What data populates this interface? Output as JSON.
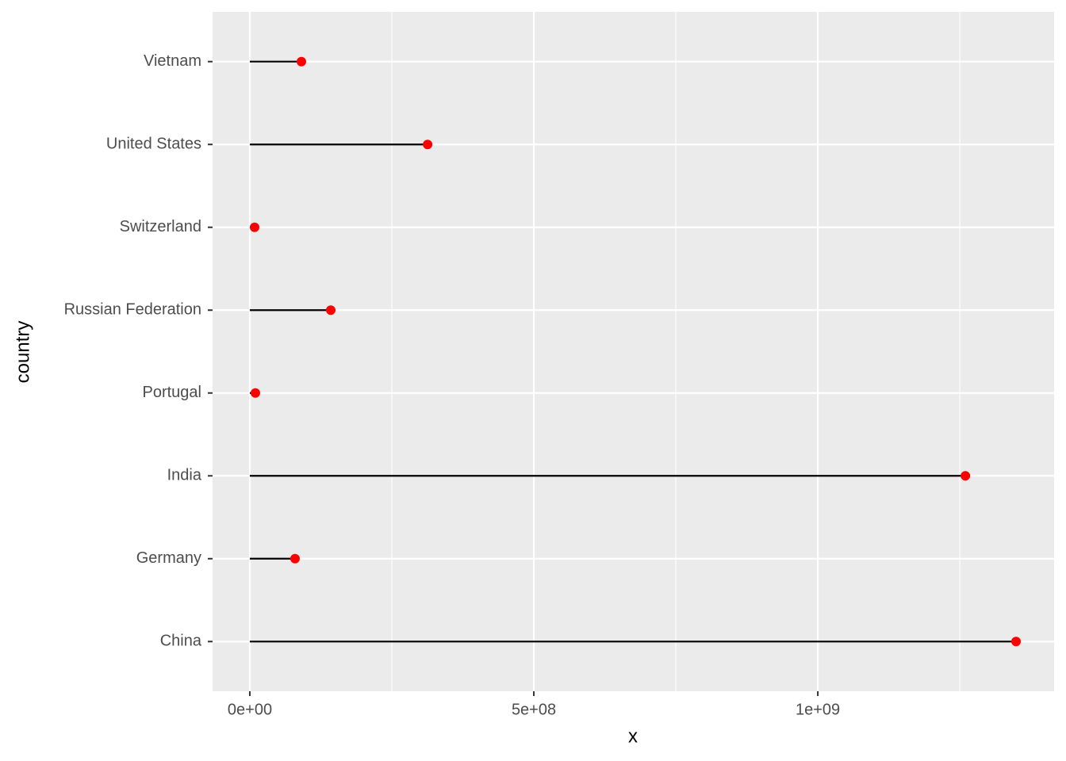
{
  "chart_data": {
    "type": "lollipop",
    "categories": [
      "China",
      "Germany",
      "India",
      "Portugal",
      "Russian Federation",
      "Switzerland",
      "United States",
      "Vietnam"
    ],
    "values": [
      1349000000,
      79600000,
      1259800000,
      9800000,
      142500000,
      8400000,
      313000000,
      90800000
    ],
    "color": "#ff0000",
    "stem_color": "#000000",
    "x_label": "x",
    "y_label": "country",
    "xlim": [
      -65600000,
      1416000000
    ],
    "xticks": [
      {
        "value": 0,
        "label": "0e+00"
      },
      {
        "value": 500000000,
        "label": "5e+08"
      },
      {
        "value": 1000000000,
        "label": "1e+09"
      }
    ],
    "xminor": [
      250000000,
      750000000,
      1250000000
    ],
    "grid": true
  }
}
